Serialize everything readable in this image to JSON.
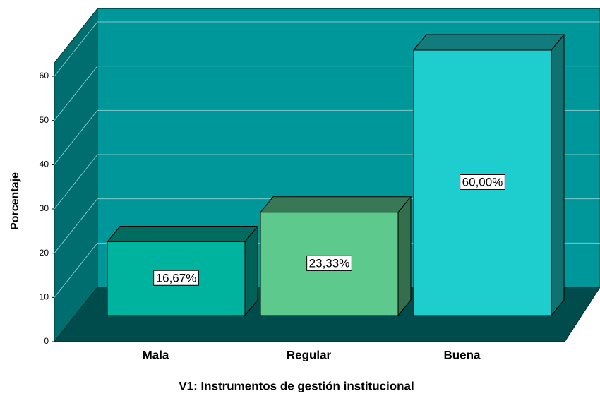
{
  "chart_data": {
    "type": "bar3d",
    "x_label": "V1: Instrumentos de gestión institucional",
    "y_label": "Porcentaje",
    "categories": [
      "Mala",
      "Regular",
      "Buena"
    ],
    "values": [
      16.67,
      23.33,
      60
    ],
    "value_labels": [
      "16,67%",
      "23,33%",
      "60,00%"
    ],
    "colors": [
      "#00b39f",
      "#5ec98d",
      "#1ecece"
    ],
    "ylim": [
      0,
      63
    ],
    "yticks": [
      0,
      10,
      20,
      30,
      40,
      50,
      60
    ],
    "grid": true
  }
}
